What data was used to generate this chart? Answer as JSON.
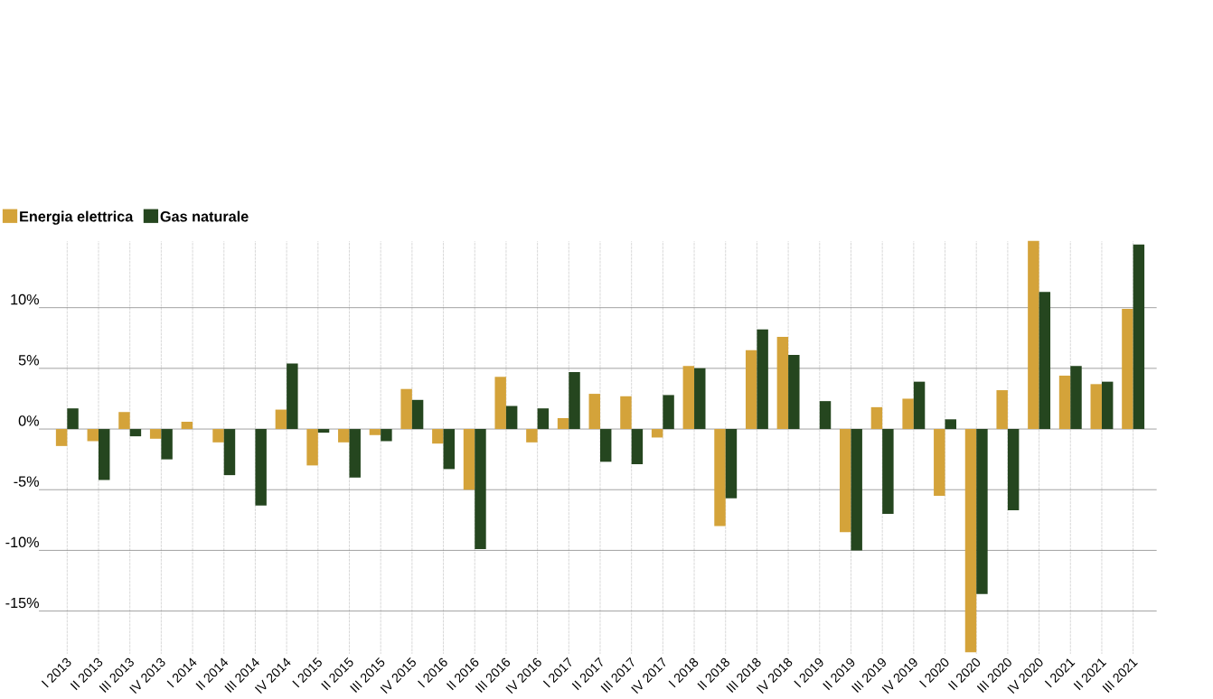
{
  "chart_data": {
    "type": "bar",
    "categories": [
      "I 2013",
      "II 2013",
      "III 2013",
      "IV 2013",
      "I 2014",
      "II 2014",
      "III 2014",
      "IV 2014",
      "I 2015",
      "II 2015",
      "III 2015",
      "IV 2015",
      "I 2016",
      "II 2016",
      "III 2016",
      "IV 2016",
      "I 2017",
      "II 2017",
      "III 2017",
      "IV 2017",
      "I 2018",
      "II 2018",
      "III 2018",
      "IV 2018",
      "I 2019",
      "II 2019",
      "III 2019",
      "IV 2019",
      "I 2020",
      "II 2020",
      "III 2020",
      "IV 2020",
      "I 2021",
      "II 2021",
      "III 2021"
    ],
    "series": [
      {
        "name": "Energia elettrica",
        "color": "#d4a33a",
        "values": [
          -1.4,
          -1.0,
          1.4,
          -0.8,
          0.6,
          -1.1,
          0,
          1.6,
          -3.0,
          -1.1,
          -0.5,
          3.3,
          -1.2,
          -5.0,
          4.3,
          -1.1,
          0.9,
          2.9,
          2.7,
          -0.7,
          5.2,
          -8.0,
          6.5,
          7.6,
          0,
          -8.5,
          1.8,
          2.5,
          -5.5,
          -18.4,
          3.2,
          15.5,
          4.4,
          3.7,
          9.9
        ]
      },
      {
        "name": "Gas naturale",
        "color": "#25461f",
        "values": [
          1.7,
          -4.2,
          -0.6,
          -2.5,
          0,
          -3.8,
          -6.3,
          5.4,
          -0.3,
          -4.0,
          -1.0,
          2.4,
          -3.3,
          -9.9,
          1.9,
          1.7,
          4.7,
          -2.7,
          -2.9,
          2.8,
          5.0,
          -5.7,
          8.2,
          6.1,
          2.3,
          -10.0,
          -7.0,
          3.9,
          0.8,
          -13.6,
          -6.7,
          11.3,
          5.2,
          3.9,
          15.2
        ]
      }
    ],
    "ylim": [
      -18.5,
      15.5
    ],
    "yticks": [
      {
        "value": -15,
        "label": "-15%"
      },
      {
        "value": -10,
        "label": "-10%"
      },
      {
        "value": -5,
        "label": "-5%"
      },
      {
        "value": 0,
        "label": "0%"
      },
      {
        "value": 5,
        "label": "5%"
      },
      {
        "value": 10,
        "label": "10%"
      }
    ],
    "grid": true,
    "legend": "top left"
  }
}
